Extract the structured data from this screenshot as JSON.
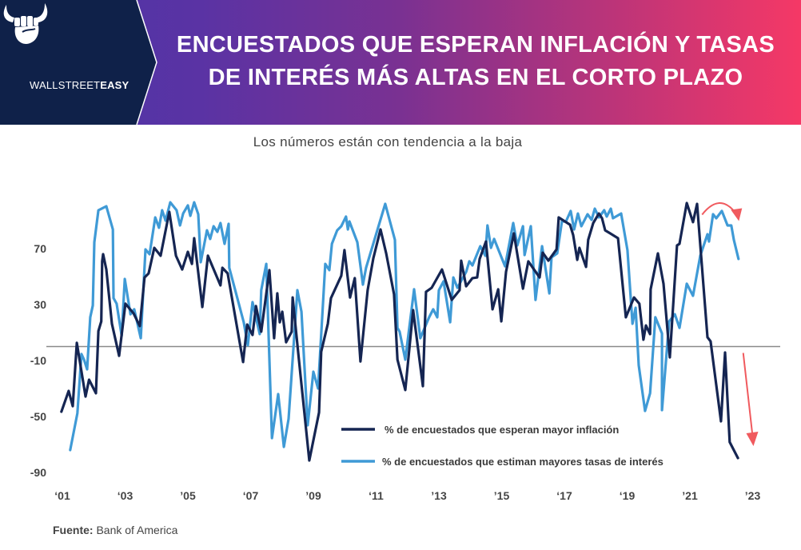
{
  "brand": {
    "name_light": "WALLSTREET",
    "name_bold": "EASY",
    "logo_icon": "bull-horns-fist-icon"
  },
  "header": {
    "title_line1": "ENCUESTADOS QUE ESPERAN INFLACIÓN Y TASAS",
    "title_line2": "DE INTERÉS MÁS ALTAS EN EL CORTO PLAZO"
  },
  "colors": {
    "header_dark": "#0f2149",
    "gradient_start": "#4a35a8",
    "gradient_end": "#f53866",
    "inflation": "#152552",
    "rates": "#3f9ad6",
    "zero_line": "#8a8a8a",
    "arrow": "#f05a5e"
  },
  "source": {
    "label": "Fuente:",
    "value": "Bank of America"
  },
  "chart_data": {
    "type": "line",
    "title": "ENCUESTADOS QUE ESPERAN INFLACIÓN Y TASAS DE INTERÉS MÁS ALTAS EN EL CORTO PLAZO",
    "subtitle": "Los números están con tendencia a la baja",
    "xlabel": "",
    "ylabel": "",
    "xlim": [
      2001,
      2023.6
    ],
    "ylim": [
      -92,
      112
    ],
    "grid": false,
    "reference_line": 0,
    "y_ticks": [
      70,
      30,
      -10,
      -50,
      -90
    ],
    "y_tick_labels": [
      "70",
      "30",
      "-10",
      "-50",
      "-90"
    ],
    "x_ticks": [
      2001,
      2003,
      2005,
      2007,
      2009,
      2011,
      2013,
      2015,
      2017,
      2019,
      2021,
      2023
    ],
    "x_tick_labels": [
      "‘01",
      "‘03",
      "’05",
      "‘07",
      "’09",
      "‘11",
      "’13",
      "’15",
      "‘17",
      "‘19",
      "’21",
      "’23"
    ],
    "legend_position": "bottom-center",
    "annotations": [
      {
        "type": "curved-arrow-down",
        "target_series": "rates",
        "at": [
          2021.95,
          100
        ]
      },
      {
        "type": "straight-arrow-down",
        "target_series": "inflation",
        "from": [
          2022.7,
          0
        ],
        "to": [
          2023.0,
          -70
        ]
      }
    ],
    "series": [
      {
        "name": "% de encuestados que esperan mayor inflación",
        "key": "inflation",
        "points": [
          [
            2000.97,
            -46.6
          ],
          [
            2001.2,
            -31.7
          ],
          [
            2001.33,
            -42.6
          ],
          [
            2001.46,
            2.6
          ],
          [
            2001.74,
            -35.7
          ],
          [
            2001.85,
            -23.7
          ],
          [
            2002.07,
            -33.4
          ],
          [
            2002.15,
            11.1
          ],
          [
            2002.24,
            18
          ],
          [
            2002.27,
            60.9
          ],
          [
            2002.3,
            66
          ],
          [
            2002.4,
            55.1
          ],
          [
            2002.58,
            16.3
          ],
          [
            2002.81,
            -6.6
          ],
          [
            2003.01,
            30.6
          ],
          [
            2003.27,
            23.7
          ],
          [
            2003.47,
            14.6
          ],
          [
            2003.62,
            49.4
          ],
          [
            2003.75,
            52.3
          ],
          [
            2003.93,
            70.6
          ],
          [
            2004.13,
            64.9
          ],
          [
            2004.41,
            96.3
          ],
          [
            2004.62,
            64.9
          ],
          [
            2004.82,
            55.1
          ],
          [
            2005.0,
            67.7
          ],
          [
            2005.13,
            59.1
          ],
          [
            2005.2,
            77.4
          ],
          [
            2005.46,
            28.3
          ],
          [
            2005.64,
            64.9
          ],
          [
            2006.04,
            43.7
          ],
          [
            2006.1,
            56.3
          ],
          [
            2006.27,
            52.3
          ],
          [
            2006.76,
            -11.1
          ],
          [
            2006.89,
            15.7
          ],
          [
            2007.06,
            8.3
          ],
          [
            2007.17,
            28.9
          ],
          [
            2007.34,
            10.6
          ],
          [
            2007.6,
            54.6
          ],
          [
            2007.75,
            6
          ],
          [
            2007.85,
            38
          ],
          [
            2007.93,
            17.4
          ],
          [
            2008.01,
            24.9
          ],
          [
            2008.13,
            3.1
          ],
          [
            2008.31,
            10.6
          ],
          [
            2008.34,
            35.1
          ],
          [
            2008.52,
            -5.4
          ],
          [
            2008.87,
            -81.4
          ],
          [
            2009.18,
            -47.1
          ],
          [
            2009.25,
            -3.7
          ],
          [
            2009.46,
            16.3
          ],
          [
            2009.56,
            34.6
          ],
          [
            2009.89,
            50.6
          ],
          [
            2009.99,
            68.9
          ],
          [
            2010.17,
            35.1
          ],
          [
            2010.32,
            48.9
          ],
          [
            2010.5,
            -10.6
          ],
          [
            2010.73,
            40.3
          ],
          [
            2010.91,
            63.1
          ],
          [
            2011.14,
            83.7
          ],
          [
            2011.32,
            66.6
          ],
          [
            2011.57,
            37.4
          ],
          [
            2011.68,
            -9.4
          ],
          [
            2011.93,
            -31.1
          ],
          [
            2012.18,
            26
          ],
          [
            2012.49,
            -28.3
          ],
          [
            2012.59,
            39.1
          ],
          [
            2012.77,
            42
          ],
          [
            2013.1,
            55.1
          ],
          [
            2013.41,
            33.4
          ],
          [
            2013.66,
            40.3
          ],
          [
            2013.71,
            61.4
          ],
          [
            2013.87,
            43.1
          ],
          [
            2014.07,
            48.9
          ],
          [
            2014.22,
            49.4
          ],
          [
            2014.3,
            62.6
          ],
          [
            2014.5,
            75.1
          ],
          [
            2014.71,
            26.6
          ],
          [
            2014.89,
            40.9
          ],
          [
            2014.99,
            18
          ],
          [
            2015.14,
            53.4
          ],
          [
            2015.39,
            80.9
          ],
          [
            2015.68,
            41.4
          ],
          [
            2015.85,
            60.9
          ],
          [
            2016.21,
            49.4
          ],
          [
            2016.31,
            67.1
          ],
          [
            2016.49,
            61.4
          ],
          [
            2016.75,
            69.4
          ],
          [
            2016.82,
            92.3
          ],
          [
            2017.18,
            87.1
          ],
          [
            2017.28,
            79.7
          ],
          [
            2017.41,
            62
          ],
          [
            2017.48,
            70.6
          ],
          [
            2017.69,
            56.9
          ],
          [
            2017.76,
            76.3
          ],
          [
            2017.92,
            88.3
          ],
          [
            2018.1,
            95.1
          ],
          [
            2018.2,
            91.7
          ],
          [
            2018.3,
            83.1
          ],
          [
            2018.71,
            77.4
          ],
          [
            2018.96,
            20.9
          ],
          [
            2019.22,
            35.1
          ],
          [
            2019.39,
            30.6
          ],
          [
            2019.52,
            4.9
          ],
          [
            2019.6,
            15.1
          ],
          [
            2019.73,
            8.9
          ],
          [
            2019.75,
            40.9
          ],
          [
            2019.98,
            66.6
          ],
          [
            2020.16,
            44.9
          ],
          [
            2020.36,
            -7.7
          ],
          [
            2020.59,
            72.3
          ],
          [
            2020.67,
            73.4
          ],
          [
            2020.9,
            102.6
          ],
          [
            2021.1,
            88.9
          ],
          [
            2021.23,
            102
          ],
          [
            2021.56,
            6.6
          ],
          [
            2021.66,
            3.7
          ],
          [
            2021.99,
            -53.4
          ],
          [
            2022.12,
            -4.3
          ],
          [
            2022.27,
            -68.3
          ],
          [
            2022.53,
            -79.7
          ]
        ]
      },
      {
        "name": "% de encuestados que estiman mayores tasas de interés",
        "key": "rates",
        "points": [
          [
            2001.25,
            -74
          ],
          [
            2001.48,
            -47.7
          ],
          [
            2001.61,
            -5.4
          ],
          [
            2001.69,
            -9.4
          ],
          [
            2001.79,
            -16.3
          ],
          [
            2001.89,
            20.9
          ],
          [
            2001.97,
            29.4
          ],
          [
            2002.02,
            74.6
          ],
          [
            2002.15,
            97.4
          ],
          [
            2002.4,
            100.3
          ],
          [
            2002.61,
            83.7
          ],
          [
            2002.63,
            34.6
          ],
          [
            2002.73,
            30.6
          ],
          [
            2002.89,
            7.7
          ],
          [
            2002.99,
            48.3
          ],
          [
            2003.17,
            23.1
          ],
          [
            2003.29,
            26.6
          ],
          [
            2003.5,
            6
          ],
          [
            2003.65,
            69.4
          ],
          [
            2003.78,
            66
          ],
          [
            2003.96,
            92.3
          ],
          [
            2004.08,
            84.9
          ],
          [
            2004.18,
            97.4
          ],
          [
            2004.29,
            90
          ],
          [
            2004.44,
            103.1
          ],
          [
            2004.64,
            97.4
          ],
          [
            2004.75,
            86.6
          ],
          [
            2004.85,
            95.1
          ],
          [
            2005.0,
            100.9
          ],
          [
            2005.08,
            93.4
          ],
          [
            2005.2,
            103.1
          ],
          [
            2005.33,
            94.6
          ],
          [
            2005.41,
            60.3
          ],
          [
            2005.61,
            83.1
          ],
          [
            2005.71,
            76.9
          ],
          [
            2005.82,
            86
          ],
          [
            2005.94,
            82
          ],
          [
            2006.04,
            88.3
          ],
          [
            2006.17,
            73.4
          ],
          [
            2006.3,
            87.7
          ],
          [
            2006.32,
            56.3
          ],
          [
            2006.78,
            17.4
          ],
          [
            2006.91,
            0.9
          ],
          [
            2007.06,
            31.7
          ],
          [
            2007.29,
            8.9
          ],
          [
            2007.34,
            40.3
          ],
          [
            2007.5,
            59.1
          ],
          [
            2007.68,
            -65.4
          ],
          [
            2007.88,
            -34
          ],
          [
            2008.06,
            -71.7
          ],
          [
            2008.21,
            -51.7
          ],
          [
            2008.49,
            40.3
          ],
          [
            2008.62,
            24.9
          ],
          [
            2008.82,
            -56.3
          ],
          [
            2009.0,
            -18
          ],
          [
            2009.15,
            -30
          ],
          [
            2009.38,
            59.1
          ],
          [
            2009.51,
            54.6
          ],
          [
            2009.59,
            73.4
          ],
          [
            2009.76,
            83.1
          ],
          [
            2009.89,
            86
          ],
          [
            2010.04,
            92.9
          ],
          [
            2010.1,
            83.7
          ],
          [
            2010.15,
            89.4
          ],
          [
            2010.4,
            74.6
          ],
          [
            2010.58,
            44.3
          ],
          [
            2010.68,
            56.3
          ],
          [
            2011.29,
            102
          ],
          [
            2011.6,
            76.3
          ],
          [
            2011.68,
            13.4
          ],
          [
            2011.75,
            10.6
          ],
          [
            2011.93,
            -9.4
          ],
          [
            2012.21,
            40.9
          ],
          [
            2012.41,
            6
          ],
          [
            2012.69,
            20.9
          ],
          [
            2012.82,
            26.6
          ],
          [
            2012.95,
            20.9
          ],
          [
            2013.0,
            40.3
          ],
          [
            2013.15,
            46.6
          ],
          [
            2013.36,
            17.4
          ],
          [
            2013.46,
            49.4
          ],
          [
            2013.59,
            42
          ],
          [
            2013.87,
            53.4
          ],
          [
            2013.97,
            60.9
          ],
          [
            2014.07,
            58
          ],
          [
            2014.32,
            71.7
          ],
          [
            2014.48,
            64.9
          ],
          [
            2014.55,
            86.6
          ],
          [
            2014.66,
            70.6
          ],
          [
            2014.76,
            76.9
          ],
          [
            2015.11,
            57.4
          ],
          [
            2015.37,
            88.3
          ],
          [
            2015.5,
            72.3
          ],
          [
            2015.68,
            86
          ],
          [
            2015.73,
            65.4
          ],
          [
            2015.93,
            86
          ],
          [
            2016.08,
            33.4
          ],
          [
            2016.29,
            71.7
          ],
          [
            2016.52,
            38
          ],
          [
            2016.59,
            63.7
          ],
          [
            2016.77,
            66.6
          ],
          [
            2016.92,
            89.4
          ],
          [
            2017.05,
            89.4
          ],
          [
            2017.2,
            96.9
          ],
          [
            2017.31,
            83.7
          ],
          [
            2017.43,
            95.1
          ],
          [
            2017.54,
            86
          ],
          [
            2017.74,
            94.6
          ],
          [
            2017.87,
            90.6
          ],
          [
            2017.97,
            98.6
          ],
          [
            2018.1,
            92.3
          ],
          [
            2018.27,
            97.4
          ],
          [
            2018.35,
            92.9
          ],
          [
            2018.48,
            98.6
          ],
          [
            2018.55,
            91.7
          ],
          [
            2018.81,
            95.1
          ],
          [
            2019.01,
            68.9
          ],
          [
            2019.17,
            16.3
          ],
          [
            2019.27,
            27.7
          ],
          [
            2019.37,
            -13.4
          ],
          [
            2019.57,
            -46
          ],
          [
            2019.73,
            -33.4
          ],
          [
            2019.9,
            20.9
          ],
          [
            2020.11,
            9.4
          ],
          [
            2020.11,
            -45.4
          ],
          [
            2020.34,
            18
          ],
          [
            2020.52,
            23.1
          ],
          [
            2020.67,
            13.4
          ],
          [
            2020.9,
            44.9
          ],
          [
            2021.1,
            36.3
          ],
          [
            2021.33,
            64.9
          ],
          [
            2021.56,
            80.3
          ],
          [
            2021.61,
            75.1
          ],
          [
            2021.74,
            94.6
          ],
          [
            2021.84,
            91.7
          ],
          [
            2022.02,
            96.9
          ],
          [
            2022.2,
            86.6
          ],
          [
            2022.32,
            86.6
          ],
          [
            2022.4,
            76.3
          ],
          [
            2022.55,
            62.6
          ]
        ]
      }
    ]
  }
}
